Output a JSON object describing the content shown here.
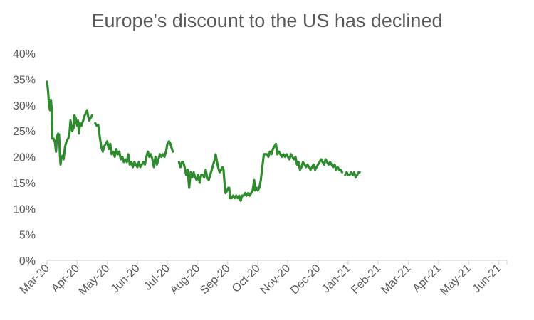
{
  "chart_data": {
    "type": "line",
    "title": "Europe's discount to the US has declined",
    "xlabel": "",
    "ylabel": "",
    "ylim": [
      0,
      40
    ],
    "y_ticks": [
      "0%",
      "5%",
      "10%",
      "15%",
      "20%",
      "25%",
      "30%",
      "35%",
      "40%"
    ],
    "x_ticks": [
      "Mar-20",
      "Apr-20",
      "May-20",
      "Jun-20",
      "Jul-20",
      "Aug-20",
      "Sep-20",
      "Oct-20",
      "Nov-20",
      "Dec-20",
      "Jan-21",
      "Feb-21",
      "Mar-21",
      "Apr-21",
      "May-21",
      "Jun-21"
    ],
    "grid": false,
    "legend": "none",
    "line_color": "#2e8b2e",
    "series": [
      {
        "segments": [
          [
            [
              0,
              34.5
            ],
            [
              0.03,
              33
            ],
            [
              0.07,
              30
            ],
            [
              0.1,
              29
            ],
            [
              0.13,
              31
            ],
            [
              0.16,
              29
            ],
            [
              0.18,
              23.5
            ],
            [
              0.22,
              23.5
            ],
            [
              0.26,
              23
            ],
            [
              0.3,
              21
            ],
            [
              0.33,
              24
            ],
            [
              0.37,
              24.5
            ],
            [
              0.4,
              24.3
            ],
            [
              0.43,
              20.5
            ],
            [
              0.45,
              18.5
            ],
            [
              0.48,
              20
            ],
            [
              0.52,
              20.2
            ],
            [
              0.55,
              19.5
            ],
            [
              0.6,
              22
            ],
            [
              0.65,
              23
            ],
            [
              0.7,
              23.5
            ],
            [
              0.74,
              24
            ],
            [
              0.78,
              27
            ],
            [
              0.81,
              26
            ],
            [
              0.84,
              25
            ],
            [
              0.88,
              25.5
            ],
            [
              0.91,
              28
            ],
            [
              0.95,
              27.5
            ],
            [
              1.0,
              26
            ],
            [
              1.03,
              27
            ],
            [
              1.06,
              24.5
            ],
            [
              1.1,
              26.5
            ],
            [
              1.14,
              26
            ],
            [
              1.2,
              27
            ],
            [
              1.25,
              28
            ],
            [
              1.3,
              28.5
            ],
            [
              1.33,
              29
            ],
            [
              1.36,
              28
            ],
            [
              1.4,
              27
            ],
            [
              1.45,
              27.5
            ],
            [
              1.5,
              28
            ]
          ],
          [
            [
              1.6,
              26.5
            ],
            [
              1.65,
              26
            ],
            [
              1.7,
              26.2
            ],
            [
              1.75,
              24
            ],
            [
              1.8,
              22
            ],
            [
              1.85,
              21
            ],
            [
              1.9,
              22
            ],
            [
              1.95,
              22.5
            ],
            [
              2.0,
              23
            ],
            [
              2.05,
              21.5
            ],
            [
              2.1,
              22.5
            ],
            [
              2.15,
              20.5
            ],
            [
              2.2,
              21
            ],
            [
              2.25,
              20
            ],
            [
              2.3,
              21.5
            ],
            [
              2.35,
              20.5
            ],
            [
              2.4,
              21
            ],
            [
              2.45,
              19.5
            ],
            [
              2.5,
              20
            ],
            [
              2.55,
              19
            ],
            [
              2.6,
              19.5
            ],
            [
              2.65,
              19
            ],
            [
              2.7,
              20.5
            ],
            [
              2.75,
              18.5
            ],
            [
              2.8,
              19
            ],
            [
              2.85,
              18
            ],
            [
              2.9,
              19
            ],
            [
              2.95,
              18.5
            ],
            [
              3.0,
              18
            ],
            [
              3.05,
              19
            ],
            [
              3.1,
              18
            ],
            [
              3.15,
              18.5
            ],
            [
              3.2,
              19
            ],
            [
              3.25,
              18.5
            ],
            [
              3.3,
              20
            ],
            [
              3.35,
              21
            ],
            [
              3.4,
              20
            ],
            [
              3.45,
              20.5
            ],
            [
              3.5,
              19.5
            ],
            [
              3.55,
              18
            ],
            [
              3.6,
              20
            ],
            [
              3.65,
              18.5
            ],
            [
              3.7,
              19.5
            ],
            [
              3.75,
              20.5
            ],
            [
              3.8,
              20
            ],
            [
              3.85,
              20.5
            ],
            [
              3.9,
              20
            ],
            [
              3.95,
              21
            ],
            [
              4.0,
              22.5
            ],
            [
              4.05,
              23
            ],
            [
              4.1,
              22.5
            ],
            [
              4.15,
              21.5
            ],
            [
              4.18,
              21
            ]
          ],
          [
            [
              4.38,
              19
            ],
            [
              4.43,
              18
            ],
            [
              4.48,
              19
            ],
            [
              4.52,
              19
            ],
            [
              4.57,
              18
            ],
            [
              4.62,
              16.5
            ],
            [
              4.67,
              17.5
            ],
            [
              4.72,
              14
            ],
            [
              4.77,
              17
            ],
            [
              4.82,
              16
            ],
            [
              4.87,
              17
            ],
            [
              4.92,
              16
            ],
            [
              4.97,
              15.5
            ],
            [
              5.02,
              16.5
            ],
            [
              5.07,
              15
            ],
            [
              5.12,
              16.5
            ],
            [
              5.17,
              16.5
            ],
            [
              5.22,
              16
            ],
            [
              5.27,
              17.5
            ],
            [
              5.32,
              16
            ],
            [
              5.37,
              15.5
            ],
            [
              5.42,
              16.5
            ],
            [
              5.47,
              17.5
            ],
            [
              5.52,
              18.5
            ],
            [
              5.57,
              19.5
            ],
            [
              5.6,
              20.5
            ],
            [
              5.63,
              19.5
            ],
            [
              5.68,
              18
            ],
            [
              5.73,
              17
            ],
            [
              5.78,
              17.5
            ],
            [
              5.83,
              18
            ],
            [
              5.86,
              17.5
            ],
            [
              5.9,
              14.5
            ],
            [
              5.93,
              13
            ],
            [
              5.98,
              13.5
            ],
            [
              6.02,
              14
            ],
            [
              6.05,
              14
            ],
            [
              6.08,
              12
            ],
            [
              6.13,
              12
            ],
            [
              6.18,
              12.5
            ],
            [
              6.23,
              12
            ],
            [
              6.28,
              12.5
            ],
            [
              6.33,
              12
            ],
            [
              6.38,
              12.5
            ],
            [
              6.43,
              11.5
            ],
            [
              6.48,
              12.5
            ],
            [
              6.53,
              12.5
            ],
            [
              6.58,
              13
            ],
            [
              6.63,
              12.5
            ],
            [
              6.68,
              13
            ],
            [
              6.73,
              12.5
            ],
            [
              6.78,
              13
            ],
            [
              6.83,
              13.5
            ],
            [
              6.88,
              15.5
            ],
            [
              6.91,
              13.5
            ],
            [
              6.96,
              14
            ],
            [
              7.0,
              13.5
            ],
            [
              7.05,
              14
            ],
            [
              7.1,
              15.5
            ],
            [
              7.15,
              18
            ],
            [
              7.2,
              20.5
            ],
            [
              7.25,
              20.5
            ],
            [
              7.3,
              20.5
            ],
            [
              7.35,
              20
            ],
            [
              7.4,
              21
            ],
            [
              7.45,
              20.5
            ],
            [
              7.5,
              21.5
            ],
            [
              7.55,
              22
            ],
            [
              7.6,
              22.5
            ],
            [
              7.65,
              20.5
            ],
            [
              7.7,
              21
            ],
            [
              7.75,
              20.5
            ],
            [
              7.8,
              20
            ],
            [
              7.85,
              20.5
            ],
            [
              7.9,
              20
            ],
            [
              7.95,
              20.5
            ],
            [
              8.0,
              20
            ],
            [
              8.05,
              19.5
            ],
            [
              8.1,
              20.5
            ],
            [
              8.15,
              20
            ],
            [
              8.2,
              19.5
            ],
            [
              8.25,
              20
            ],
            [
              8.3,
              18.5
            ],
            [
              8.35,
              19
            ],
            [
              8.4,
              17.5
            ],
            [
              8.45,
              18
            ],
            [
              8.5,
              19
            ],
            [
              8.55,
              18.5
            ],
            [
              8.6,
              18
            ],
            [
              8.65,
              18.5
            ],
            [
              8.7,
              18
            ],
            [
              8.75,
              17.5
            ],
            [
              8.8,
              18
            ],
            [
              8.85,
              18.5
            ],
            [
              8.9,
              17.5
            ],
            [
              8.95,
              18
            ],
            [
              9.0,
              18.5
            ],
            [
              9.05,
              19
            ],
            [
              9.1,
              19.5
            ],
            [
              9.15,
              19
            ],
            [
              9.2,
              18.5
            ],
            [
              9.25,
              19.5
            ],
            [
              9.3,
              19
            ],
            [
              9.35,
              18.5
            ],
            [
              9.4,
              19
            ],
            [
              9.45,
              18.5
            ],
            [
              9.5,
              18
            ],
            [
              9.55,
              18.5
            ],
            [
              9.6,
              17.5
            ],
            [
              9.65,
              18
            ],
            [
              9.7,
              17.5
            ],
            [
              9.75,
              17.5
            ],
            [
              9.8,
              17
            ]
          ],
          [
            [
              9.9,
              16.5
            ],
            [
              9.95,
              17
            ],
            [
              10.0,
              16.5
            ],
            [
              10.05,
              16.5
            ],
            [
              10.1,
              17
            ],
            [
              10.15,
              16.5
            ],
            [
              10.2,
              17
            ],
            [
              10.25,
              16
            ],
            [
              10.3,
              16.5
            ],
            [
              10.35,
              17
            ],
            [
              10.38,
              17
            ]
          ]
        ]
      }
    ]
  }
}
